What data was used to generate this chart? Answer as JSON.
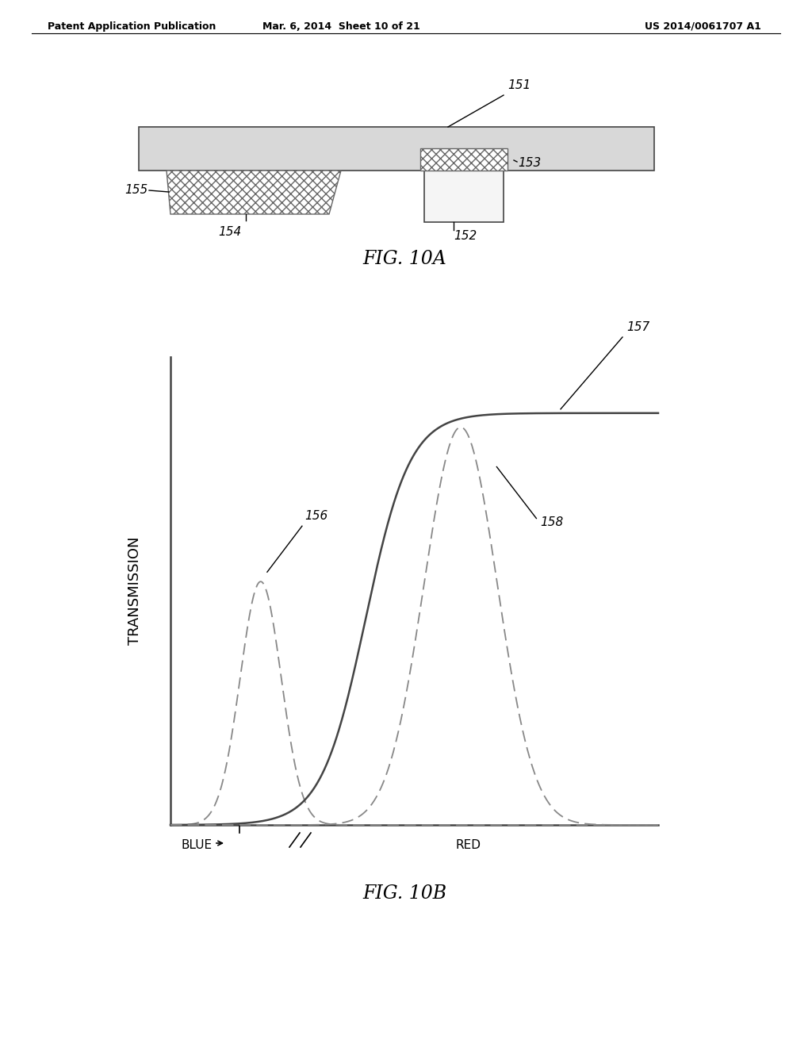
{
  "bg_color": "#ffffff",
  "header_left": "Patent Application Publication",
  "header_mid": "Mar. 6, 2014  Sheet 10 of 21",
  "header_right": "US 2014/0061707 A1",
  "fig10a_label": "FIG. 10A",
  "fig10b_label": "FIG. 10B",
  "label_151": "151",
  "label_152": "152",
  "label_153": "153",
  "label_154": "154",
  "label_155": "155",
  "label_156": "156",
  "label_157": "157",
  "label_158": "158",
  "xlabel_blue": "BLUE",
  "xlabel_red": "RED",
  "ylabel": "TRANSMISSION",
  "line_color": "#444444",
  "hatch_color": "#666666"
}
